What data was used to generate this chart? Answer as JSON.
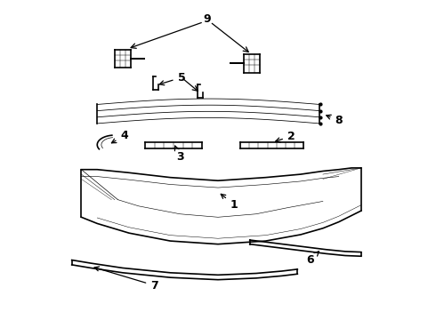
{
  "background_color": "#ffffff",
  "line_color": "#000000",
  "figsize": [
    4.9,
    3.6
  ],
  "dpi": 100,
  "lw_main": 1.2,
  "lw_thin": 0.7,
  "label_fontsize": 9
}
